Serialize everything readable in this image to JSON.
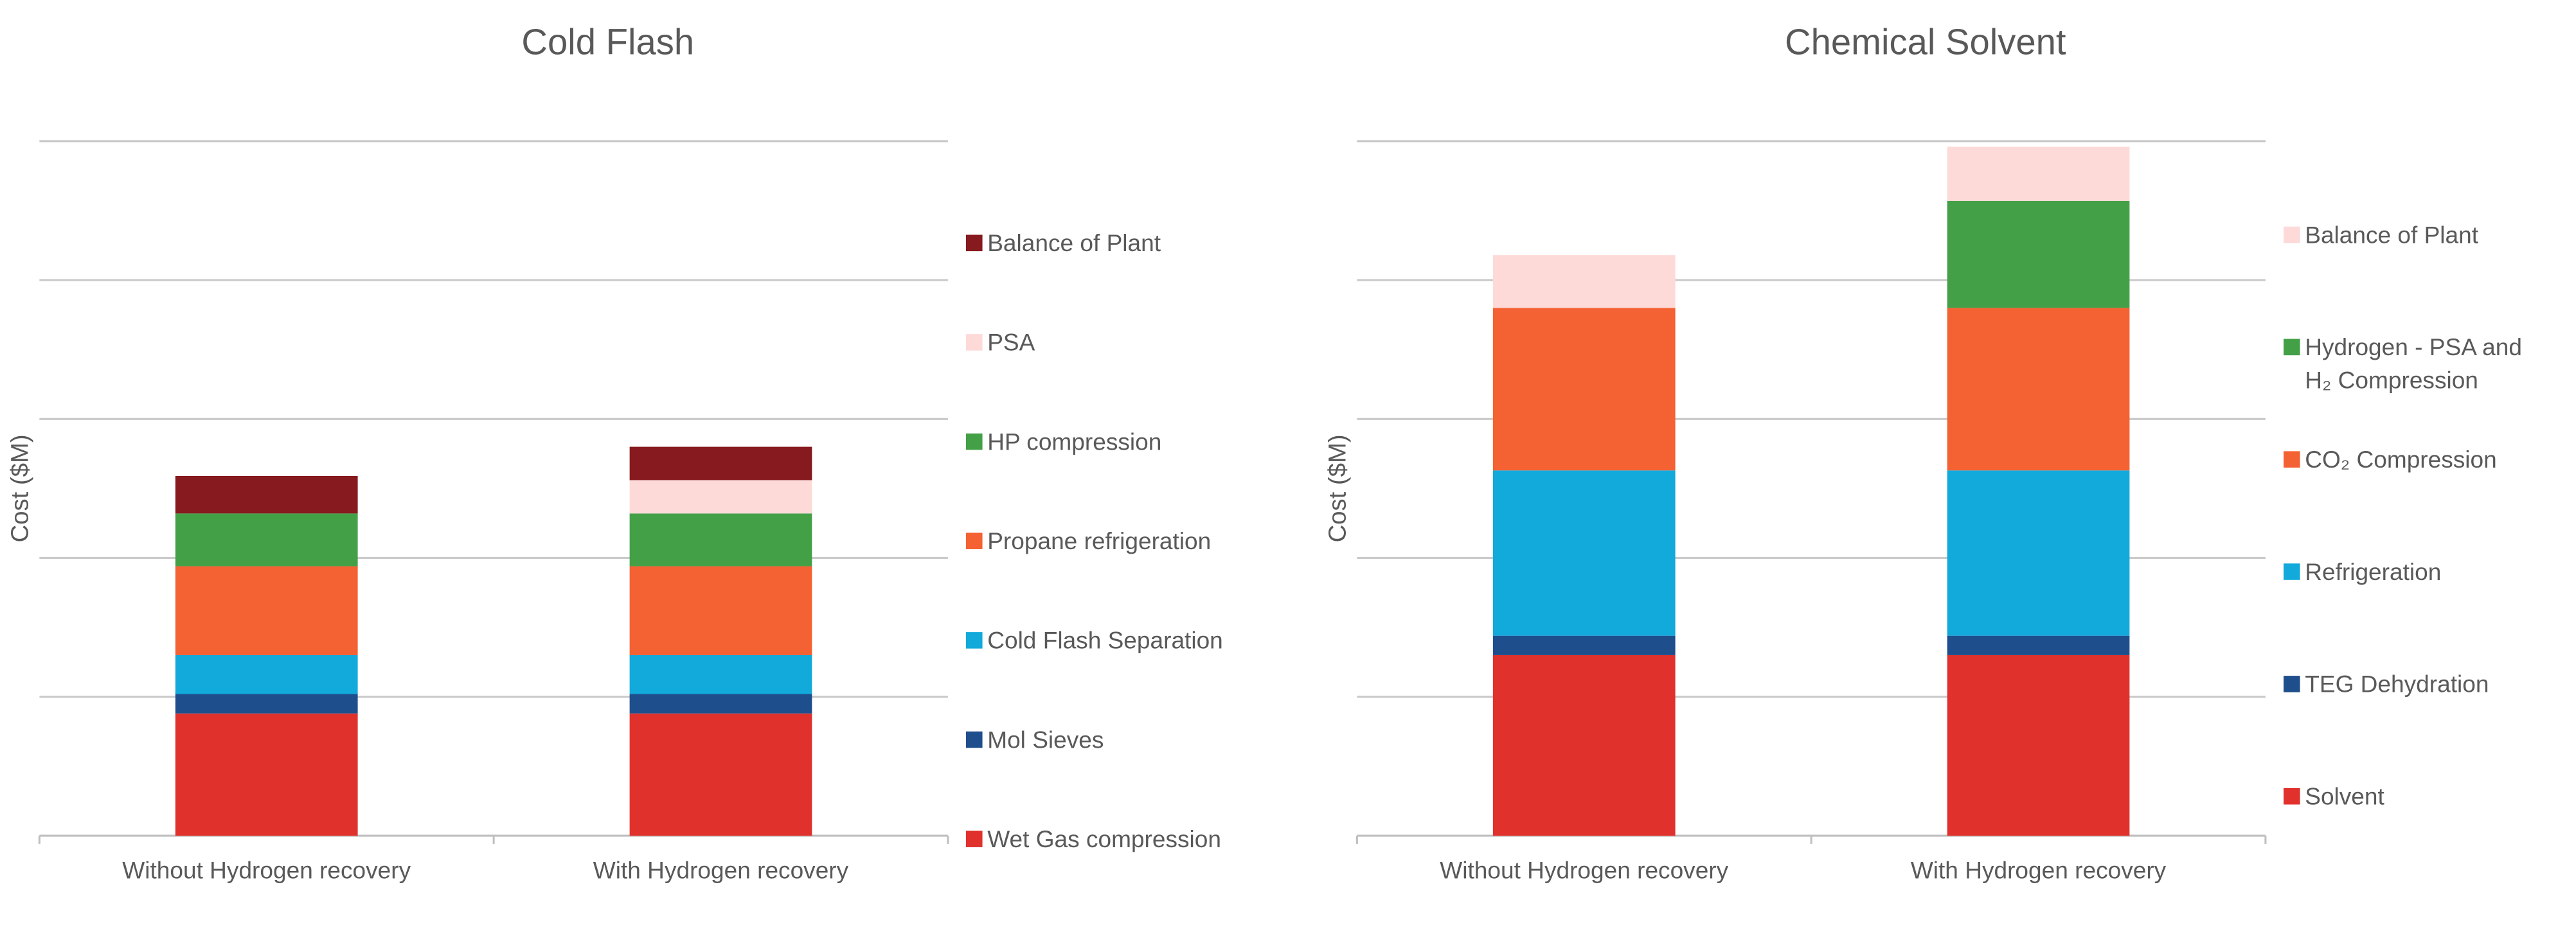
{
  "chart_data": [
    {
      "type": "bar",
      "stacked": true,
      "title": "Cold Flash",
      "xlabel": "",
      "ylabel": "Cost ($M)",
      "ylim": [
        0,
        5
      ],
      "grid": true,
      "y_tick_labels_shown": false,
      "legend_position": "right",
      "categories": [
        "Without Hydrogen recovery",
        "With Hydrogen recovery"
      ],
      "series": [
        {
          "name": "Wet Gas compression",
          "color": "#E0312D",
          "values": [
            0.88,
            0.88
          ]
        },
        {
          "name": "Mol Sieves",
          "color": "#1F4E8C",
          "values": [
            0.14,
            0.14
          ]
        },
        {
          "name": "Cold Flash Separation",
          "color": "#12A9DB",
          "values": [
            0.28,
            0.28
          ]
        },
        {
          "name": "Propane refrigeration",
          "color": "#F46133",
          "values": [
            0.64,
            0.64
          ]
        },
        {
          "name": "HP  compression",
          "color": "#43A047",
          "values": [
            0.38,
            0.38
          ]
        },
        {
          "name": "PSA",
          "color": "#FDDAD8",
          "values": [
            0.0,
            0.24
          ]
        },
        {
          "name": "Balance of Plant",
          "color": "#861A1E",
          "values": [
            0.27,
            0.24
          ]
        }
      ]
    },
    {
      "type": "bar",
      "stacked": true,
      "title": "Chemical Solvent",
      "xlabel": "",
      "ylabel": "Cost ($M)",
      "ylim": [
        0,
        5
      ],
      "grid": true,
      "y_tick_labels_shown": false,
      "legend_position": "right",
      "categories": [
        "Without Hydrogen recovery",
        "With Hydrogen recovery"
      ],
      "series": [
        {
          "name": "Solvent",
          "color": "#E0312D",
          "values": [
            1.3,
            1.3
          ]
        },
        {
          "name": "TEG Dehydration",
          "color": "#1F4E8C",
          "values": [
            0.14,
            0.14
          ]
        },
        {
          "name": "Refrigeration",
          "color": "#12A9DB",
          "values": [
            1.19,
            1.19
          ]
        },
        {
          "name": "CO₂  Compression",
          "color": "#F46133",
          "values": [
            1.17,
            1.17
          ]
        },
        {
          "name": "Hydrogen - PSA and H₂ Compression",
          "color": "#43A047",
          "values": [
            0.0,
            0.77
          ]
        },
        {
          "name": "Balance of Plant",
          "color": "#FDDAD8",
          "values": [
            0.38,
            0.39
          ]
        }
      ]
    }
  ]
}
